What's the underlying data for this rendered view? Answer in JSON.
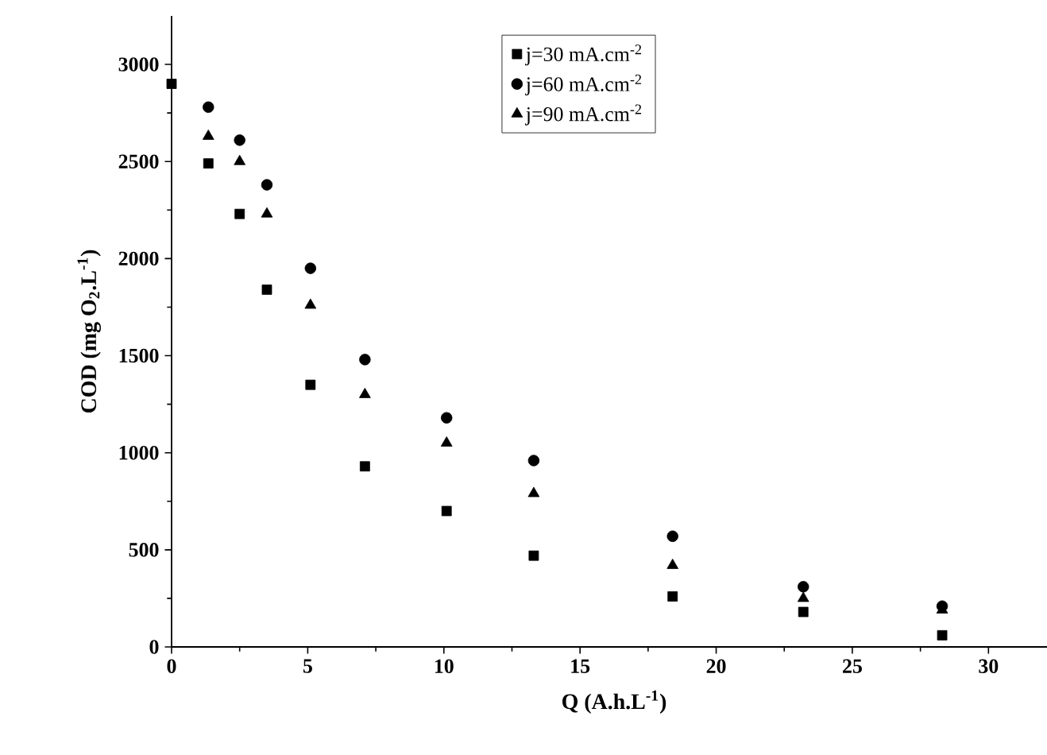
{
  "chart_data": {
    "type": "scatter",
    "xlabel": "Q (A.h.L$^{-1}$)",
    "ylabel": "COD (mg O$_{2}$.L$^{-1}$)",
    "x": [
      0,
      1.35,
      2.5,
      3.5,
      5.1,
      7.1,
      10.1,
      13.3,
      18.4,
      23.2,
      28.3
    ],
    "series": [
      {
        "name": "j=30 mA.cm$^{-2}$",
        "color": "#000000",
        "marker": "square",
        "values": [
          2900,
          2490,
          2230,
          1840,
          1350,
          930,
          700,
          470,
          260,
          180,
          60
        ]
      },
      {
        "name": "j=60 mA.cm$^{-2}$",
        "color": "#000000",
        "marker": "circle",
        "values": [
          null,
          2780,
          2610,
          2380,
          1950,
          1480,
          1180,
          960,
          570,
          310,
          210
        ]
      },
      {
        "name": "j=90 mA.cm$^{-2}$",
        "color": "#000000",
        "marker": "triangle",
        "values": [
          null,
          2630,
          2500,
          2230,
          1760,
          1300,
          1050,
          790,
          420,
          250,
          190
        ]
      }
    ],
    "xlim": [
      0,
      32.5
    ],
    "ylim": [
      0,
      3250
    ],
    "xticks": [
      0,
      5,
      10,
      15,
      20,
      25,
      30
    ],
    "yticks": [
      0,
      500,
      1000,
      1500,
      2000,
      2500,
      3000
    ],
    "legend": "top",
    "grid": false
  }
}
